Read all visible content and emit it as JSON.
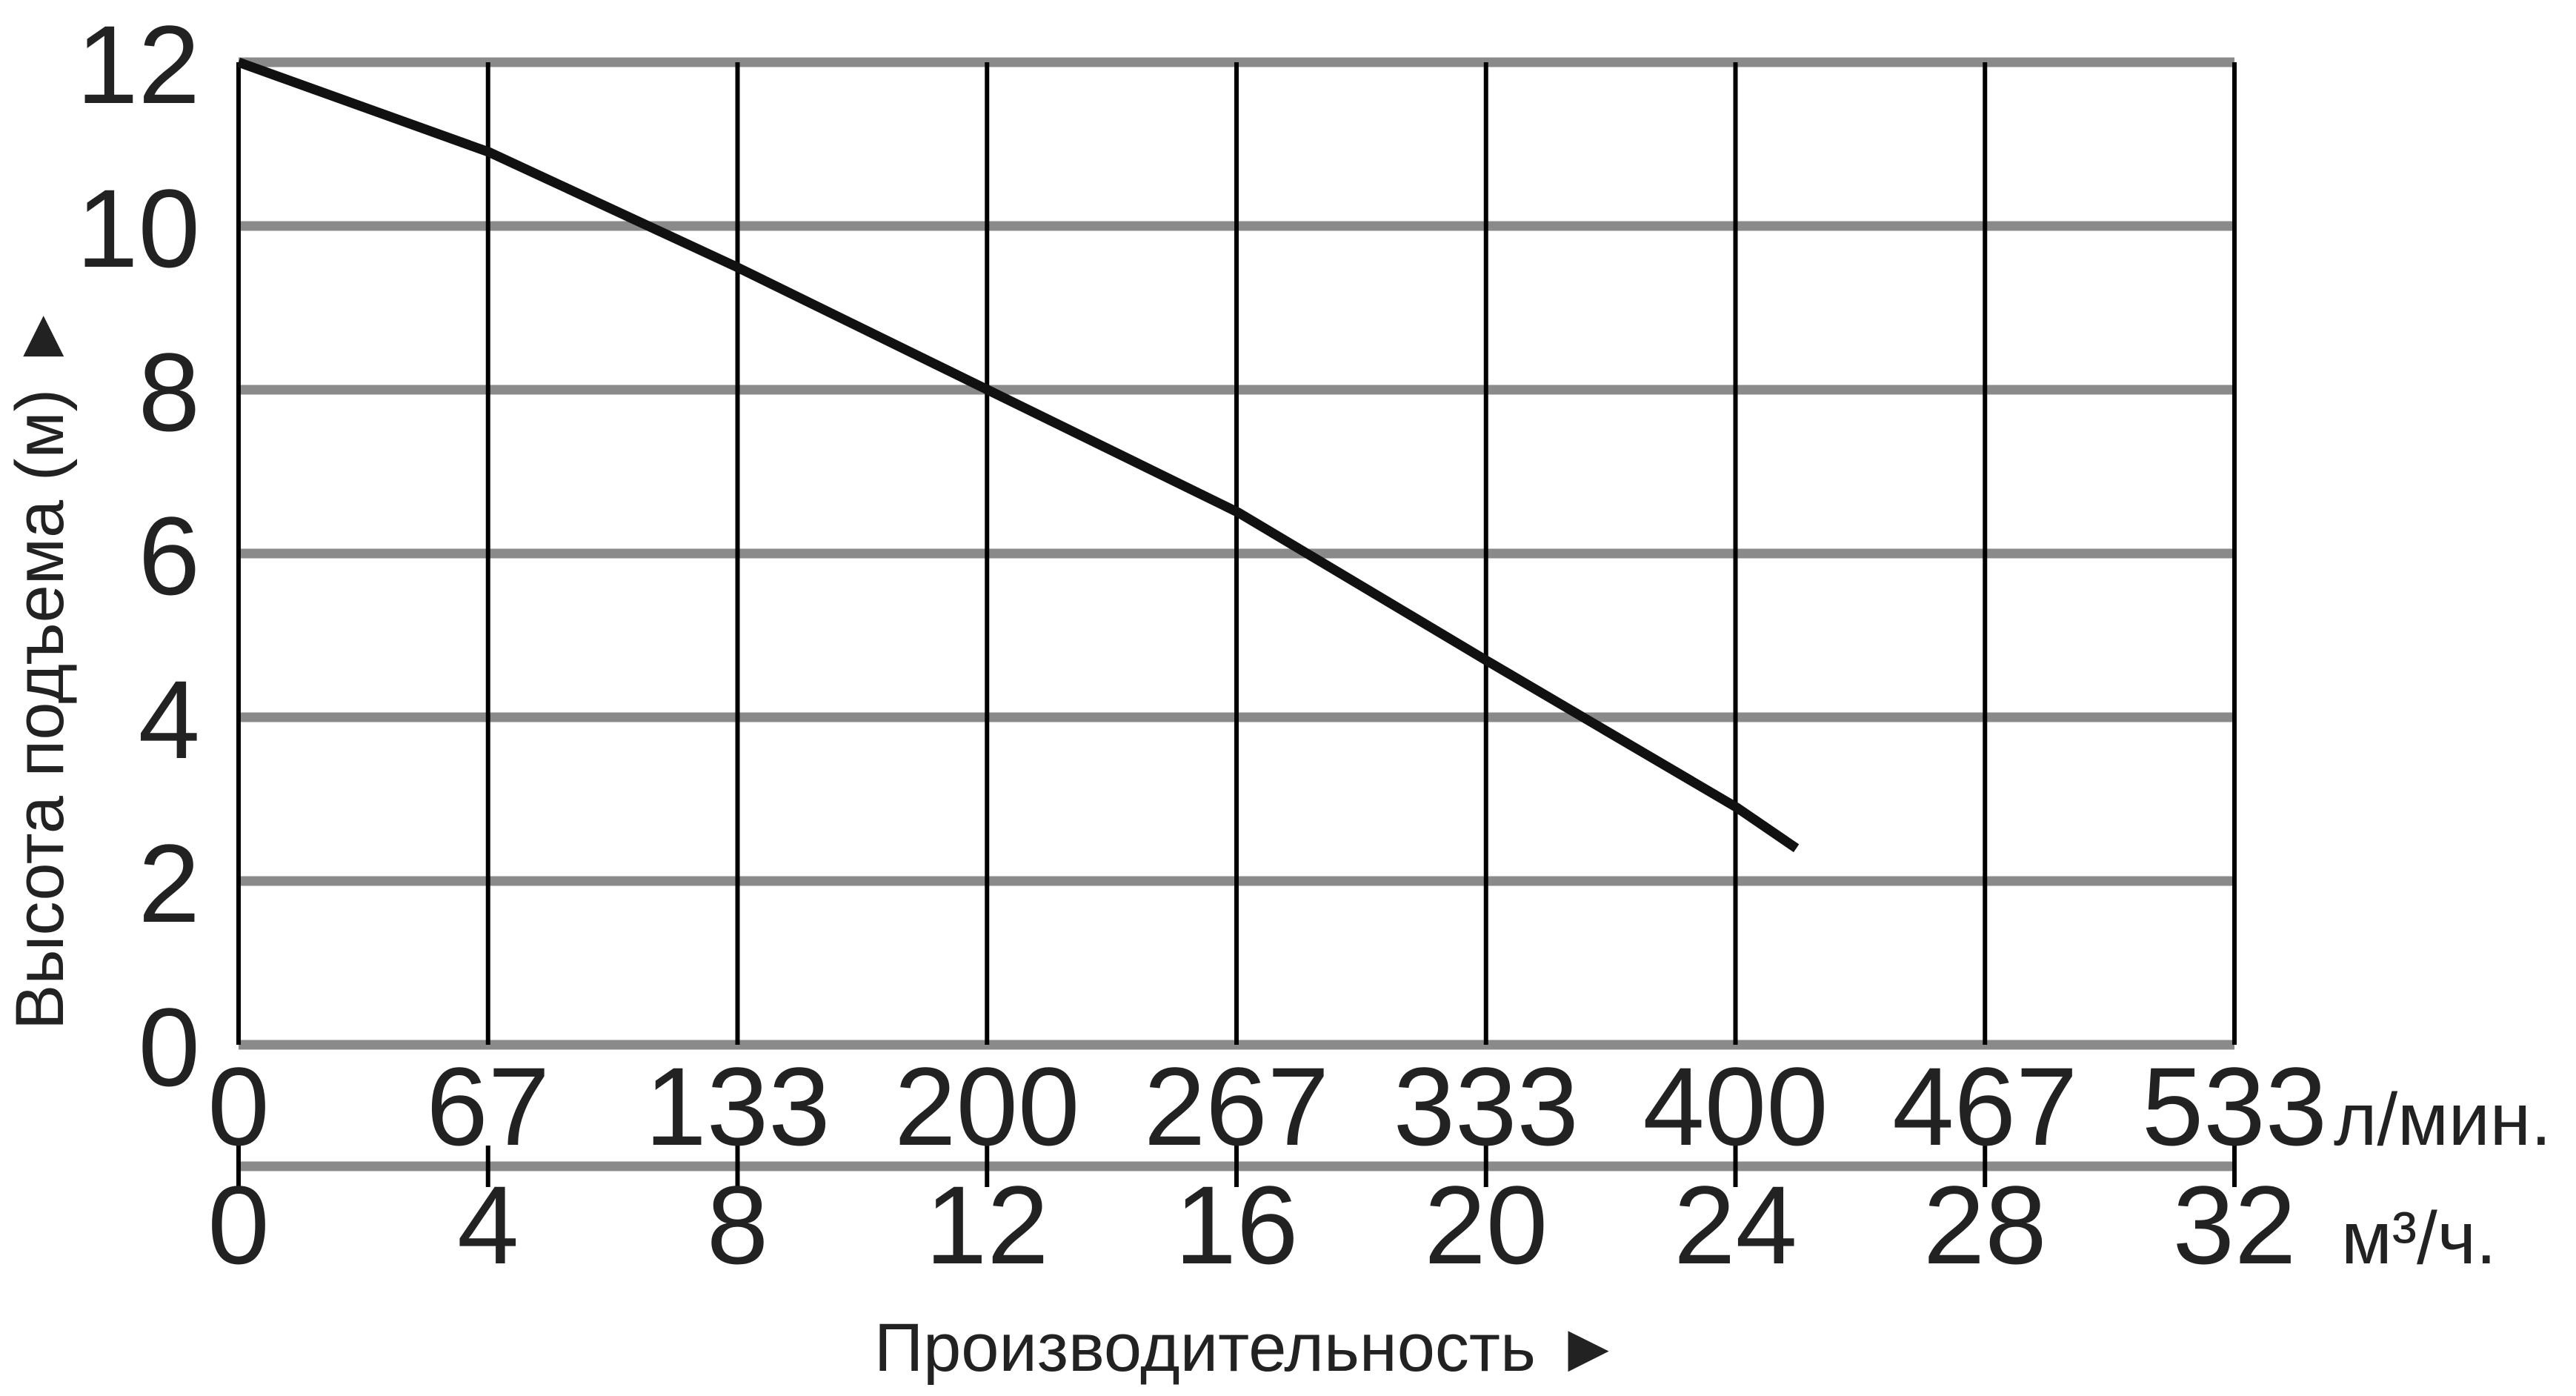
{
  "chart_data": {
    "type": "line",
    "xlabel": "Производительность ►",
    "ylabel": "Высота подъема (м) ►",
    "ylim": [
      0,
      12
    ],
    "xlim": [
      0,
      533
    ],
    "grid": true,
    "y_ticks": [
      "0",
      "2",
      "4",
      "6",
      "8",
      "10",
      "12"
    ],
    "x_ticks_primary": [
      "0",
      "67",
      "133",
      "200",
      "267",
      "333",
      "400",
      "467",
      "533"
    ],
    "x_unit_primary": "л/мин.",
    "x_ticks_secondary": [
      "0",
      "4",
      "8",
      "12",
      "16",
      "20",
      "24",
      "28",
      "32"
    ],
    "x_unit_secondary": "м³/ч.",
    "series": [
      {
        "x": [
          0,
          67,
          133,
          200,
          267,
          333,
          400,
          416
        ],
        "y": [
          12,
          10.9,
          9.5,
          8.0,
          6.5,
          4.7,
          2.9,
          2.4
        ]
      }
    ],
    "colors": {
      "curve": "#111111",
      "hgrid": "#8a8a8a",
      "vgrid": "#000000"
    }
  }
}
